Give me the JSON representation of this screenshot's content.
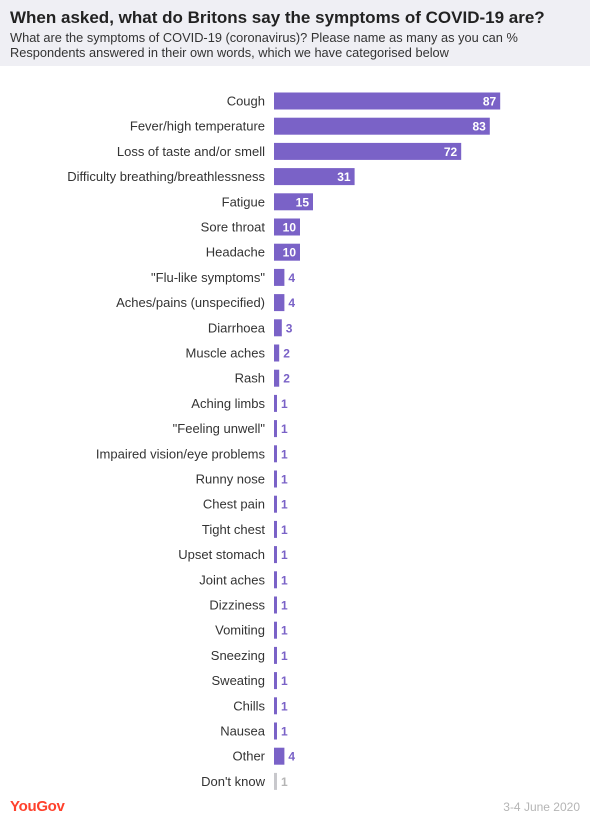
{
  "header": {
    "title": "When asked, what do Britons say the symptoms of COVID-19 are?",
    "subtitle": "What are the symptoms of COVID-19 (coronavirus)? Please name as many as you can %",
    "note": "Respondents answered in their own words, which we have categorised below"
  },
  "footer": {
    "brand": "YouGov",
    "date": "3-4 June 2020"
  },
  "colors": {
    "bar": "#7a62c7",
    "bar_muted": "#c8c8cc",
    "label_inside": "#ffffff",
    "label_outside": "#7a62c7",
    "label_muted": "#b5b5b5"
  },
  "chart_data": {
    "type": "bar",
    "orientation": "horizontal",
    "categories": [
      "Cough",
      "Fever/high temperature",
      "Loss of taste and/or smell",
      "Difficulty breathing/breathlessness",
      "Fatigue",
      "Sore throat",
      "Headache",
      "\"Flu-like symptoms\"",
      "Aches/pains (unspecified)",
      "Diarrhoea",
      "Muscle aches",
      "Rash",
      "Aching limbs",
      "\"Feeling unwell\"",
      "Impaired vision/eye problems",
      "Runny nose",
      "Chest pain",
      "Tight chest",
      "Upset stomach",
      "Joint aches",
      "Dizziness",
      "Vomiting",
      "Sneezing",
      "Sweating",
      "Chills",
      "Nausea",
      "Other",
      "Don't know"
    ],
    "values": [
      87,
      83,
      72,
      31,
      15,
      10,
      10,
      4,
      4,
      3,
      2,
      2,
      1,
      1,
      1,
      1,
      1,
      1,
      1,
      1,
      1,
      1,
      1,
      1,
      1,
      1,
      4,
      1
    ],
    "muted": [
      "Don't know"
    ],
    "xlim": [
      0,
      100
    ],
    "grid": false,
    "legend": "none"
  }
}
